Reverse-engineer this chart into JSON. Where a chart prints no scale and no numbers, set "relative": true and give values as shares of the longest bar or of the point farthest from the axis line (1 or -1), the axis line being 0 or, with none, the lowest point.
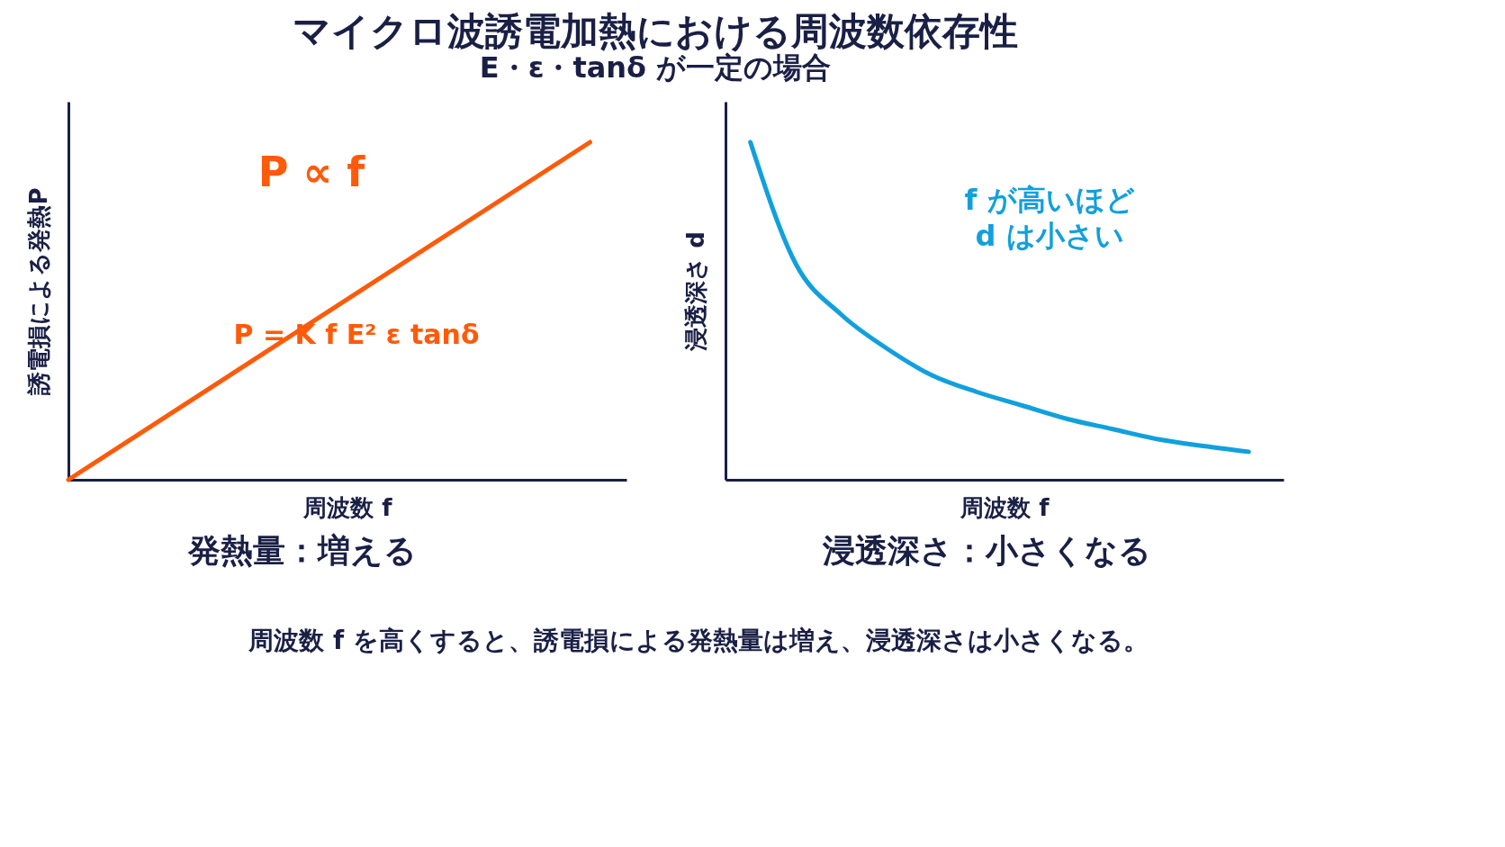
{
  "chart_data": [
    {
      "type": "line",
      "title": "マイクロ波誘電加熱における周波数依存性",
      "subtitle": "E・ε・tanδ が一定の場合",
      "relative": true,
      "xlabel": "周波数 f",
      "ylabel": "誘電損による発熱P",
      "categories": [
        null,
        null
      ],
      "series": [
        {
          "color": "#ff5a0a",
          "values": [
            0,
            1
          ]
        }
      ],
      "line_style": "solid",
      "marker": "none",
      "grid": false,
      "annotations": [
        "P ∝ f",
        "P = K f E² ε tanδ",
        "発熱量：増える",
        "周波数 f を高くすると、誘電損による発熱量は増え、浸透深さは小さくなる。"
      ]
    },
    {
      "type": "line",
      "relative": true,
      "xlabel": "周波数 f",
      "ylabel": "浸透深さ d",
      "categories": [
        null,
        null,
        null,
        null,
        null,
        null,
        null,
        null,
        null,
        null,
        null,
        null
      ],
      "series": [
        {
          "color": "#12a0dc",
          "values": [
            1,
            0.64,
            0.49,
            0.39,
            0.31,
            0.26,
            0.22,
            0.18,
            0.15,
            0.12,
            0.1,
            0.083
          ]
        }
      ],
      "line_style": "solid",
      "marker": "none",
      "grid": false,
      "annotations": [
        "f が高いほど",
        "d は小さい",
        "浸透深さ：小さくなる"
      ]
    }
  ]
}
